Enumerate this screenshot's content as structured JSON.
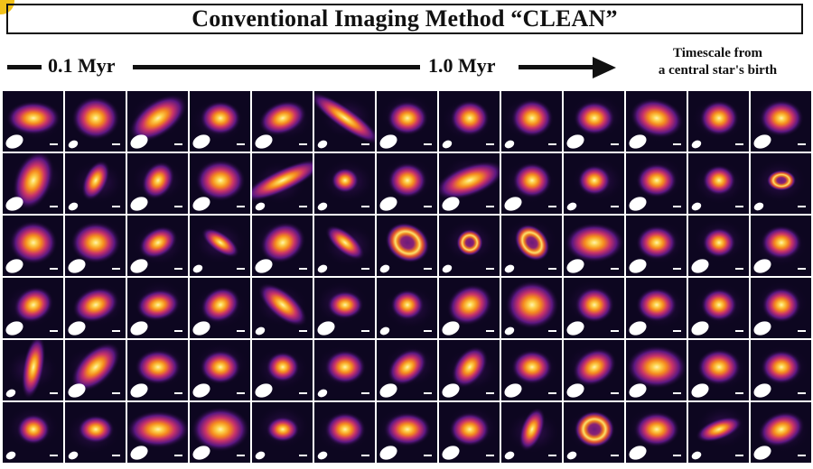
{
  "header": {
    "title": "Conventional Imaging Method “CLEAN”"
  },
  "timeline": {
    "start_label": "0.1 Myr",
    "mid_label": "1.0 Myr",
    "note_line1": "Timescale from",
    "note_line2": "a central star's birth"
  },
  "colors": {
    "background": "#0d0620",
    "colormap": "inferno",
    "beam": "#ffffff",
    "scale_bar": "#ffffff"
  },
  "grid": {
    "rows": [
      [
        {
          "morph": "blob",
          "size": 0.8,
          "elong": 1.6,
          "angle": 0,
          "beam": "large"
        },
        {
          "morph": "blob",
          "size": 0.85,
          "elong": 1.1,
          "angle": 0,
          "beam": "small"
        },
        {
          "morph": "blob",
          "size": 0.9,
          "elong": 1.9,
          "angle": -35,
          "beam": "large"
        },
        {
          "morph": "blob",
          "size": 0.7,
          "elong": 1.2,
          "angle": 0,
          "beam": "large"
        },
        {
          "morph": "blob",
          "size": 0.75,
          "elong": 1.5,
          "angle": -20,
          "beam": "large"
        },
        {
          "morph": "blob",
          "size": 0.8,
          "elong": 4.0,
          "angle": 35,
          "beam": "small"
        },
        {
          "morph": "blob",
          "size": 0.7,
          "elong": 1.2,
          "angle": 0,
          "beam": "large"
        },
        {
          "morph": "blob",
          "size": 0.7,
          "elong": 1.1,
          "angle": 0,
          "beam": "small"
        },
        {
          "morph": "blob",
          "size": 0.75,
          "elong": 1.1,
          "angle": 0,
          "beam": "small"
        },
        {
          "morph": "blob",
          "size": 0.7,
          "elong": 1.2,
          "angle": 0,
          "beam": "large"
        },
        {
          "morph": "blob",
          "size": 0.85,
          "elong": 1.4,
          "angle": 15,
          "beam": "large"
        },
        {
          "morph": "blob",
          "size": 0.7,
          "elong": 1.1,
          "angle": 0,
          "beam": "small"
        },
        {
          "morph": "blob",
          "size": 0.75,
          "elong": 1.2,
          "angle": 0,
          "beam": "large"
        }
      ],
      [
        {
          "morph": "blob",
          "size": 0.9,
          "elong": 1.6,
          "angle": -70,
          "beam": "large"
        },
        {
          "morph": "blob",
          "size": 0.6,
          "elong": 1.8,
          "angle": -65,
          "beam": "small"
        },
        {
          "morph": "blob",
          "size": 0.65,
          "elong": 1.3,
          "angle": -60,
          "beam": "large"
        },
        {
          "morph": "blob",
          "size": 0.85,
          "elong": 1.2,
          "angle": 0,
          "beam": "large"
        },
        {
          "morph": "blob",
          "size": 0.85,
          "elong": 3.8,
          "angle": -25,
          "beam": "small"
        },
        {
          "morph": "blob",
          "size": 0.5,
          "elong": 1.1,
          "angle": 0,
          "beam": "small"
        },
        {
          "morph": "blob",
          "size": 0.7,
          "elong": 1.1,
          "angle": 0,
          "beam": "large"
        },
        {
          "morph": "blob",
          "size": 0.9,
          "elong": 2.3,
          "angle": -20,
          "beam": "large"
        },
        {
          "morph": "blob",
          "size": 0.7,
          "elong": 1.1,
          "angle": 0,
          "beam": "large"
        },
        {
          "morph": "blob",
          "size": 0.6,
          "elong": 1.1,
          "angle": 0,
          "beam": "small"
        },
        {
          "morph": "blob",
          "size": 0.7,
          "elong": 1.2,
          "angle": 0,
          "beam": "large"
        },
        {
          "morph": "blob",
          "size": 0.6,
          "elong": 1.1,
          "angle": 0,
          "beam": "small"
        },
        {
          "morph": "ring",
          "size": 0.55,
          "elong": 1.4,
          "angle": 0,
          "beam": "small"
        }
      ],
      [
        {
          "morph": "blob",
          "size": 0.85,
          "elong": 1.1,
          "angle": 0,
          "beam": "large"
        },
        {
          "morph": "blob",
          "size": 0.85,
          "elong": 1.2,
          "angle": 0,
          "beam": "large"
        },
        {
          "morph": "blob",
          "size": 0.65,
          "elong": 1.4,
          "angle": -30,
          "beam": "large"
        },
        {
          "morph": "blob",
          "size": 0.55,
          "elong": 2.2,
          "angle": 35,
          "beam": "small"
        },
        {
          "morph": "blob",
          "size": 0.8,
          "elong": 1.2,
          "angle": -30,
          "beam": "large"
        },
        {
          "morph": "blob",
          "size": 0.6,
          "elong": 2.2,
          "angle": 40,
          "beam": "small"
        },
        {
          "morph": "ring",
          "size": 0.85,
          "elong": 1.2,
          "angle": 30,
          "beam": "small"
        },
        {
          "morph": "ring",
          "size": 0.5,
          "elong": 1.0,
          "angle": 0,
          "beam": "small"
        },
        {
          "morph": "ring",
          "size": 0.75,
          "elong": 1.3,
          "angle": 50,
          "beam": "small"
        },
        {
          "morph": "blob",
          "size": 0.9,
          "elong": 1.5,
          "angle": 0,
          "beam": "large"
        },
        {
          "morph": "blob",
          "size": 0.7,
          "elong": 1.2,
          "angle": 0,
          "beam": "large"
        },
        {
          "morph": "blob",
          "size": 0.6,
          "elong": 1.1,
          "angle": 0,
          "beam": "large"
        },
        {
          "morph": "blob",
          "size": 0.7,
          "elong": 1.2,
          "angle": 0,
          "beam": "large"
        }
      ],
      [
        {
          "morph": "blob",
          "size": 0.7,
          "elong": 1.2,
          "angle": -30,
          "beam": "large"
        },
        {
          "morph": "blob",
          "size": 0.75,
          "elong": 1.4,
          "angle": -20,
          "beam": "large"
        },
        {
          "morph": "blob",
          "size": 0.7,
          "elong": 1.4,
          "angle": -10,
          "beam": "large"
        },
        {
          "morph": "blob",
          "size": 0.7,
          "elong": 1.2,
          "angle": -30,
          "beam": "large"
        },
        {
          "morph": "blob",
          "size": 0.75,
          "elong": 2.2,
          "angle": 40,
          "beam": "small"
        },
        {
          "morph": "blob",
          "size": 0.6,
          "elong": 1.3,
          "angle": 0,
          "beam": "large"
        },
        {
          "morph": "blob",
          "size": 0.6,
          "elong": 1.1,
          "angle": 0,
          "beam": "small"
        },
        {
          "morph": "blob",
          "size": 0.8,
          "elong": 1.2,
          "angle": -30,
          "beam": "large"
        },
        {
          "morph": "blob",
          "size": 0.95,
          "elong": 1.1,
          "angle": 0,
          "beam": "small"
        },
        {
          "morph": "blob",
          "size": 0.7,
          "elong": 1.1,
          "angle": 0,
          "beam": "large"
        },
        {
          "morph": "blob",
          "size": 0.7,
          "elong": 1.2,
          "angle": 0,
          "beam": "large"
        },
        {
          "morph": "blob",
          "size": 0.65,
          "elong": 1.1,
          "angle": 0,
          "beam": "large"
        },
        {
          "morph": "blob",
          "size": 0.7,
          "elong": 1.1,
          "angle": 0,
          "beam": "large"
        }
      ],
      [
        {
          "morph": "blob",
          "size": 0.7,
          "elong": 3.0,
          "angle": -80,
          "beam": "small"
        },
        {
          "morph": "blob",
          "size": 0.85,
          "elong": 1.8,
          "angle": -45,
          "beam": "large"
        },
        {
          "morph": "blob",
          "size": 0.75,
          "elong": 1.3,
          "angle": 0,
          "beam": "large"
        },
        {
          "morph": "blob",
          "size": 0.7,
          "elong": 1.2,
          "angle": 0,
          "beam": "large"
        },
        {
          "morph": "blob",
          "size": 0.6,
          "elong": 1.1,
          "angle": 0,
          "beam": "large"
        },
        {
          "morph": "blob",
          "size": 0.7,
          "elong": 1.2,
          "angle": 0,
          "beam": "small"
        },
        {
          "morph": "blob",
          "size": 0.7,
          "elong": 1.4,
          "angle": -40,
          "beam": "large"
        },
        {
          "morph": "blob",
          "size": 0.7,
          "elong": 1.5,
          "angle": -55,
          "beam": "large"
        },
        {
          "morph": "blob",
          "size": 0.7,
          "elong": 1.2,
          "angle": 0,
          "beam": "large"
        },
        {
          "morph": "blob",
          "size": 0.75,
          "elong": 1.3,
          "angle": -30,
          "beam": "large"
        },
        {
          "morph": "blob",
          "size": 0.95,
          "elong": 1.4,
          "angle": 0,
          "beam": "large"
        },
        {
          "morph": "blob",
          "size": 0.75,
          "elong": 1.2,
          "angle": 0,
          "beam": "large"
        },
        {
          "morph": "blob",
          "size": 0.7,
          "elong": 1.2,
          "angle": 0,
          "beam": "large"
        }
      ],
      [
        {
          "morph": "blob",
          "size": 0.6,
          "elong": 1.1,
          "angle": 0,
          "beam": "small"
        },
        {
          "morph": "blob",
          "size": 0.6,
          "elong": 1.3,
          "angle": 0,
          "beam": "small"
        },
        {
          "morph": "blob",
          "size": 0.9,
          "elong": 1.7,
          "angle": 0,
          "beam": "large"
        },
        {
          "morph": "blob",
          "size": 0.95,
          "elong": 1.3,
          "angle": 0,
          "beam": "large"
        },
        {
          "morph": "blob",
          "size": 0.55,
          "elong": 1.3,
          "angle": 0,
          "beam": "small"
        },
        {
          "morph": "blob",
          "size": 0.7,
          "elong": 1.2,
          "angle": 0,
          "beam": "small"
        },
        {
          "morph": "blob",
          "size": 0.75,
          "elong": 1.4,
          "angle": 0,
          "beam": "large"
        },
        {
          "morph": "blob",
          "size": 0.7,
          "elong": 1.2,
          "angle": 0,
          "beam": "large"
        },
        {
          "morph": "blob",
          "size": 0.6,
          "elong": 2.0,
          "angle": -70,
          "beam": "small"
        },
        {
          "morph": "ring",
          "size": 0.75,
          "elong": 1.1,
          "angle": 0,
          "beam": "small"
        },
        {
          "morph": "blob",
          "size": 0.75,
          "elong": 1.3,
          "angle": 0,
          "beam": "large"
        },
        {
          "morph": "blob",
          "size": 0.6,
          "elong": 2.3,
          "angle": -20,
          "beam": "small"
        },
        {
          "morph": "blob",
          "size": 0.75,
          "elong": 1.4,
          "angle": -20,
          "beam": "large"
        }
      ]
    ]
  }
}
